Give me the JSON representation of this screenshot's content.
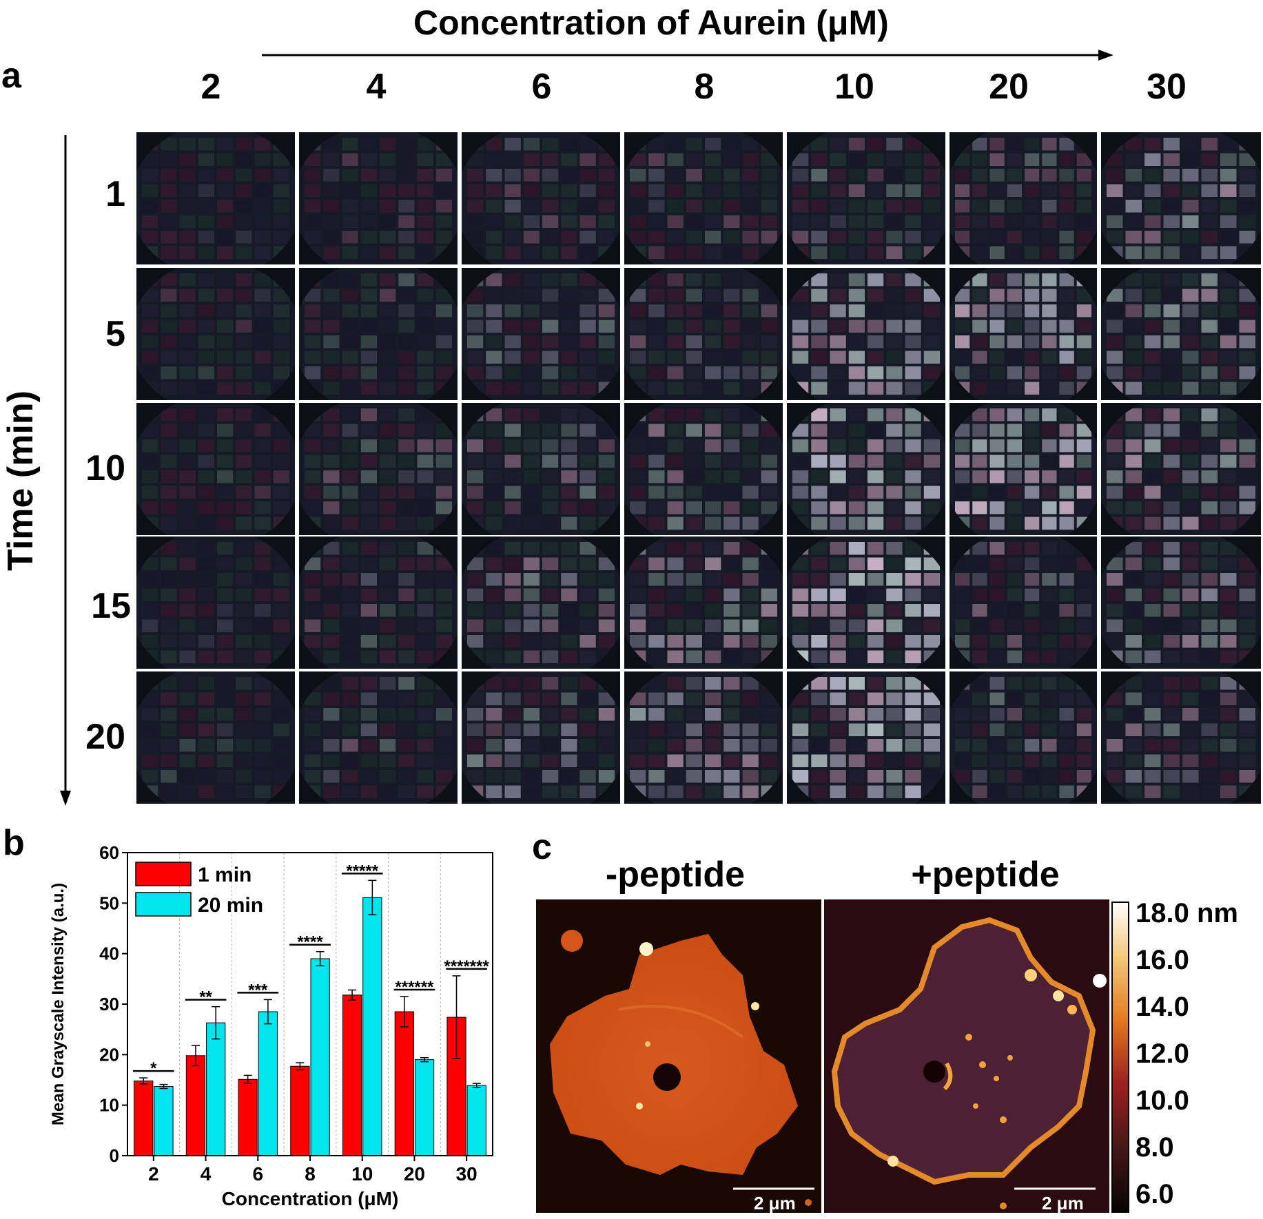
{
  "panel_a": {
    "letter": "a",
    "concentration_title": "Concentration of Aurein (μM)",
    "concentrations": [
      "2",
      "4",
      "6",
      "8",
      "10",
      "20",
      "30"
    ],
    "time_title": "Time (min)",
    "times": [
      "1",
      "5",
      "10",
      "15",
      "20"
    ]
  },
  "panel_b": {
    "letter": "b",
    "chart_data": {
      "type": "bar",
      "title": "",
      "xlabel": "Concentration (μM)",
      "ylabel": "Mean Grayscale Intensity (a.u.)",
      "categories": [
        "2",
        "4",
        "6",
        "8",
        "10",
        "20",
        "30"
      ],
      "ylim": [
        0,
        60
      ],
      "yticks": [
        "0",
        "10",
        "20",
        "30",
        "40",
        "50",
        "60"
      ],
      "legend_position": "top-left",
      "series": [
        {
          "name": "1 min",
          "color": "#ff0000",
          "values": [
            14.8,
            19.8,
            15.1,
            17.7,
            31.8,
            28.5,
            27.4
          ],
          "errors": [
            0.6,
            2.0,
            0.8,
            0.7,
            1.0,
            3.0,
            8.2
          ]
        },
        {
          "name": "20 min",
          "color": "#00e5ee",
          "values": [
            13.7,
            26.3,
            28.5,
            39.0,
            51.1,
            19.0,
            13.9
          ],
          "errors": [
            0.4,
            3.2,
            2.4,
            1.4,
            3.4,
            0.4,
            0.4
          ]
        }
      ],
      "significance": [
        "*",
        "**",
        "***",
        "****",
        "*****",
        "******",
        "*******"
      ]
    }
  },
  "panel_c": {
    "letter": "c",
    "left_title": "-peptide",
    "right_title": "+peptide",
    "scale_bar_left": "2 μm",
    "scale_bar_right": "2 μm",
    "colorbar_labels": [
      "18.0 nm",
      "16.0",
      "14.0",
      "12.0",
      "10.0",
      "8.0",
      "6.0"
    ]
  }
}
